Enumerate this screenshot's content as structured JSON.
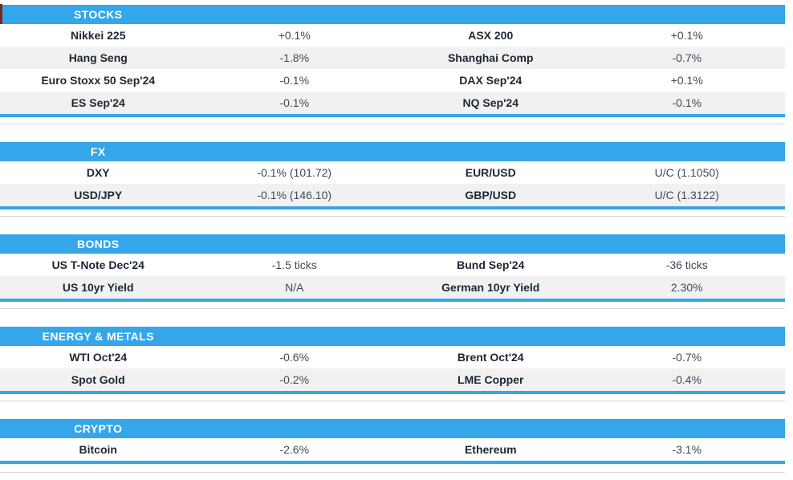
{
  "colors": {
    "header_bg": "#35a6e9",
    "section_border": "#35a6e9",
    "stripe_bg": "#f1f1f1",
    "label_text": "#1c2733",
    "value_text": "#3f4a57",
    "divider": "#d8d8d8",
    "edge_mark": "#7b2425"
  },
  "sections": [
    {
      "id": "stocks",
      "title": "STOCKS",
      "rows": [
        [
          "Nikkei 225",
          "+0.1%",
          "ASX 200",
          "+0.1%"
        ],
        [
          "Hang Seng",
          "-1.8%",
          "Shanghai Comp",
          "-0.7%"
        ],
        [
          "Euro Stoxx 50 Sep'24",
          "-0.1%",
          "DAX Sep'24",
          "+0.1%"
        ],
        [
          "ES Sep'24",
          "-0.1%",
          "NQ Sep'24",
          "-0.1%"
        ]
      ]
    },
    {
      "id": "fx",
      "title": "FX",
      "rows": [
        [
          "DXY",
          "-0.1% (101.72)",
          "EUR/USD",
          "U/C (1.1050)"
        ],
        [
          "USD/JPY",
          "-0.1% (146.10)",
          "GBP/USD",
          "U/C (1.3122)"
        ]
      ]
    },
    {
      "id": "bonds",
      "title": "BONDS",
      "rows": [
        [
          "US T-Note Dec'24",
          "-1.5 ticks",
          "Bund Sep'24",
          "-36 ticks"
        ],
        [
          "US 10yr Yield",
          "N/A",
          "German 10yr Yield",
          "2.30%"
        ]
      ]
    },
    {
      "id": "energy-metals",
      "title": "ENERGY & METALS",
      "rows": [
        [
          "WTI Oct'24",
          "-0.6%",
          "Brent Oct'24",
          "-0.7%"
        ],
        [
          "Spot Gold",
          "-0.2%",
          "LME Copper",
          "-0.4%"
        ]
      ]
    },
    {
      "id": "crypto",
      "title": "CRYPTO",
      "rows": [
        [
          "Bitcoin",
          "-2.6%",
          "Ethereum",
          "-3.1%"
        ]
      ]
    }
  ]
}
